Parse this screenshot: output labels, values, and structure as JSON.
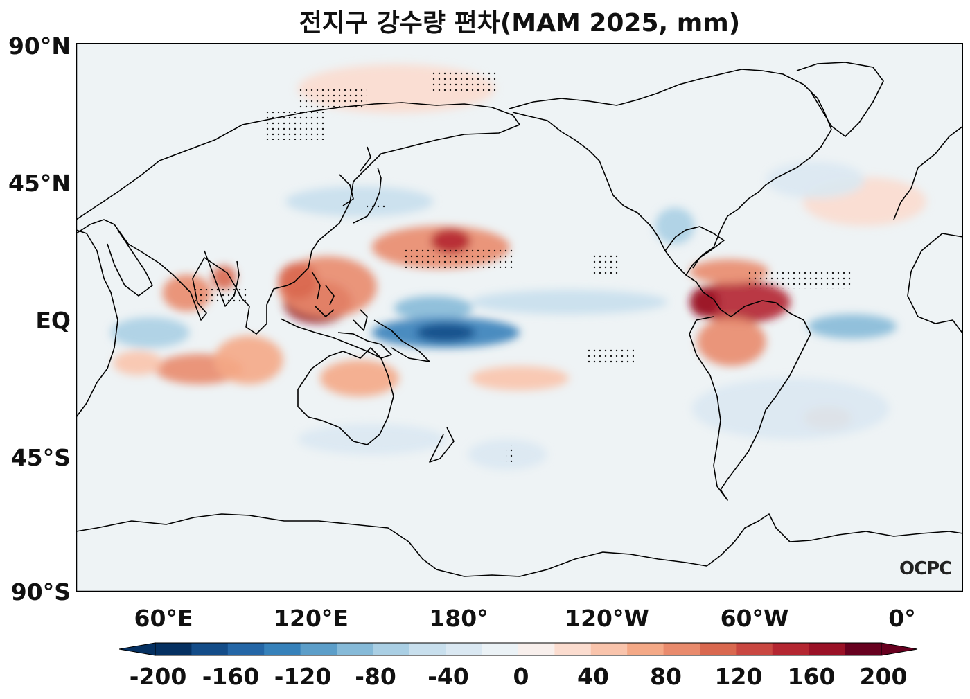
{
  "title": "전지구 강수량 편차(MAM 2025, mm)",
  "map": {
    "projection": "PlateCarree, central longitude 180",
    "lon_range": [
      30,
      390
    ],
    "lat_range": [
      -90,
      90
    ],
    "lat_ticks": [
      {
        "value": 90,
        "label": "90°N"
      },
      {
        "value": 45,
        "label": "45°N"
      },
      {
        "value": 0,
        "label": "EQ"
      },
      {
        "value": -45,
        "label": "45°S"
      },
      {
        "value": -90,
        "label": "90°S"
      }
    ],
    "lon_ticks": [
      {
        "value": 60,
        "label": "60°E"
      },
      {
        "value": 120,
        "label": "120°E"
      },
      {
        "value": 180,
        "label": "180°"
      },
      {
        "value": 240,
        "label": "120°W"
      },
      {
        "value": 300,
        "label": "60°W"
      },
      {
        "value": 360,
        "label": "0°"
      }
    ],
    "logo_text": "OCPC",
    "anomaly_regions": [
      {
        "lon": 128,
        "lat": 5,
        "rx": 14,
        "ry": 7,
        "value": 160
      },
      {
        "lon": 132,
        "lat": 10,
        "rx": 20,
        "ry": 10,
        "value": 80
      },
      {
        "lon": 120,
        "lat": 12,
        "rx": 8,
        "ry": 6,
        "value": 100
      },
      {
        "lon": 178,
        "lat": 23,
        "rx": 28,
        "ry": 7,
        "value": 80
      },
      {
        "lon": 182,
        "lat": 25,
        "rx": 8,
        "ry": 4,
        "value": 140
      },
      {
        "lon": 145,
        "lat": -20,
        "rx": 16,
        "ry": 6,
        "value": 60
      },
      {
        "lon": 75,
        "lat": 8,
        "rx": 10,
        "ry": 6,
        "value": 80
      },
      {
        "lon": 90,
        "lat": 13,
        "rx": 5,
        "ry": 4,
        "value": 100
      },
      {
        "lon": 80,
        "lat": -17,
        "rx": 18,
        "ry": 5,
        "value": 80
      },
      {
        "lon": 100,
        "lat": -14,
        "rx": 14,
        "ry": 8,
        "value": 60
      },
      {
        "lon": 300,
        "lat": 5,
        "rx": 20,
        "ry": 7,
        "value": 140
      },
      {
        "lon": 285,
        "lat": 5,
        "rx": 6,
        "ry": 5,
        "value": 160
      },
      {
        "lon": 296,
        "lat": -8,
        "rx": 14,
        "ry": 8,
        "value": 80
      },
      {
        "lon": 295,
        "lat": 15,
        "rx": 16,
        "ry": 4,
        "value": 80
      },
      {
        "lon": 210,
        "lat": -20,
        "rx": 20,
        "ry": 4,
        "value": 40
      },
      {
        "lon": 350,
        "lat": 38,
        "rx": 25,
        "ry": 8,
        "value": 30
      },
      {
        "lon": 160,
        "lat": 75,
        "rx": 40,
        "ry": 8,
        "value": 30
      },
      {
        "lon": 55,
        "lat": -15,
        "rx": 10,
        "ry": 4,
        "value": 40
      },
      {
        "lon": 335,
        "lat": -33,
        "rx": 10,
        "ry": 4,
        "value": 60
      },
      {
        "lon": 175,
        "lat": 3,
        "rx": 16,
        "ry": 4,
        "value": -100
      },
      {
        "lon": 180,
        "lat": -5,
        "rx": 30,
        "ry": 5,
        "value": -140
      },
      {
        "lon": 180,
        "lat": -5,
        "rx": 12,
        "ry": 3,
        "value": -180
      },
      {
        "lon": 230,
        "lat": 5,
        "rx": 40,
        "ry": 4,
        "value": -60
      },
      {
        "lon": 345,
        "lat": -3,
        "rx": 18,
        "ry": 4,
        "value": -100
      },
      {
        "lon": 60,
        "lat": -5,
        "rx": 16,
        "ry": 5,
        "value": -80
      },
      {
        "lon": 145,
        "lat": 38,
        "rx": 30,
        "ry": 5,
        "value": -60
      },
      {
        "lon": 273,
        "lat": 30,
        "rx": 8,
        "ry": 6,
        "value": -80
      },
      {
        "lon": 320,
        "lat": -30,
        "rx": 40,
        "ry": 10,
        "value": -30
      },
      {
        "lon": 150,
        "lat": -40,
        "rx": 30,
        "ry": 5,
        "value": -30
      },
      {
        "lon": 205,
        "lat": -45,
        "rx": 16,
        "ry": 5,
        "value": -40
      },
      {
        "lon": 330,
        "lat": 45,
        "rx": 20,
        "ry": 6,
        "value": -30
      }
    ]
  },
  "colorbar": {
    "levels": [
      -200,
      -180,
      -160,
      -140,
      -120,
      -100,
      -80,
      -60,
      -40,
      -20,
      0,
      20,
      40,
      60,
      80,
      100,
      120,
      140,
      160,
      180,
      200
    ],
    "colors": [
      "#053061",
      "#134c88",
      "#2466a6",
      "#3681ba",
      "#5c9ec9",
      "#86bad8",
      "#aacfe4",
      "#c8dfed",
      "#dae8f2",
      "#ebf2f6",
      "#f8efec",
      "#fbdccf",
      "#f9c4ac",
      "#f4a987",
      "#e98b6d",
      "#d9684f",
      "#c94741",
      "#b42631",
      "#9a1126",
      "#67001f"
    ],
    "tick_labels": [
      "-200",
      "-160",
      "-120",
      "-80",
      "-40",
      "0",
      "40",
      "80",
      "120",
      "160",
      "200"
    ],
    "under_color": "#053061",
    "over_color": "#67001f"
  }
}
